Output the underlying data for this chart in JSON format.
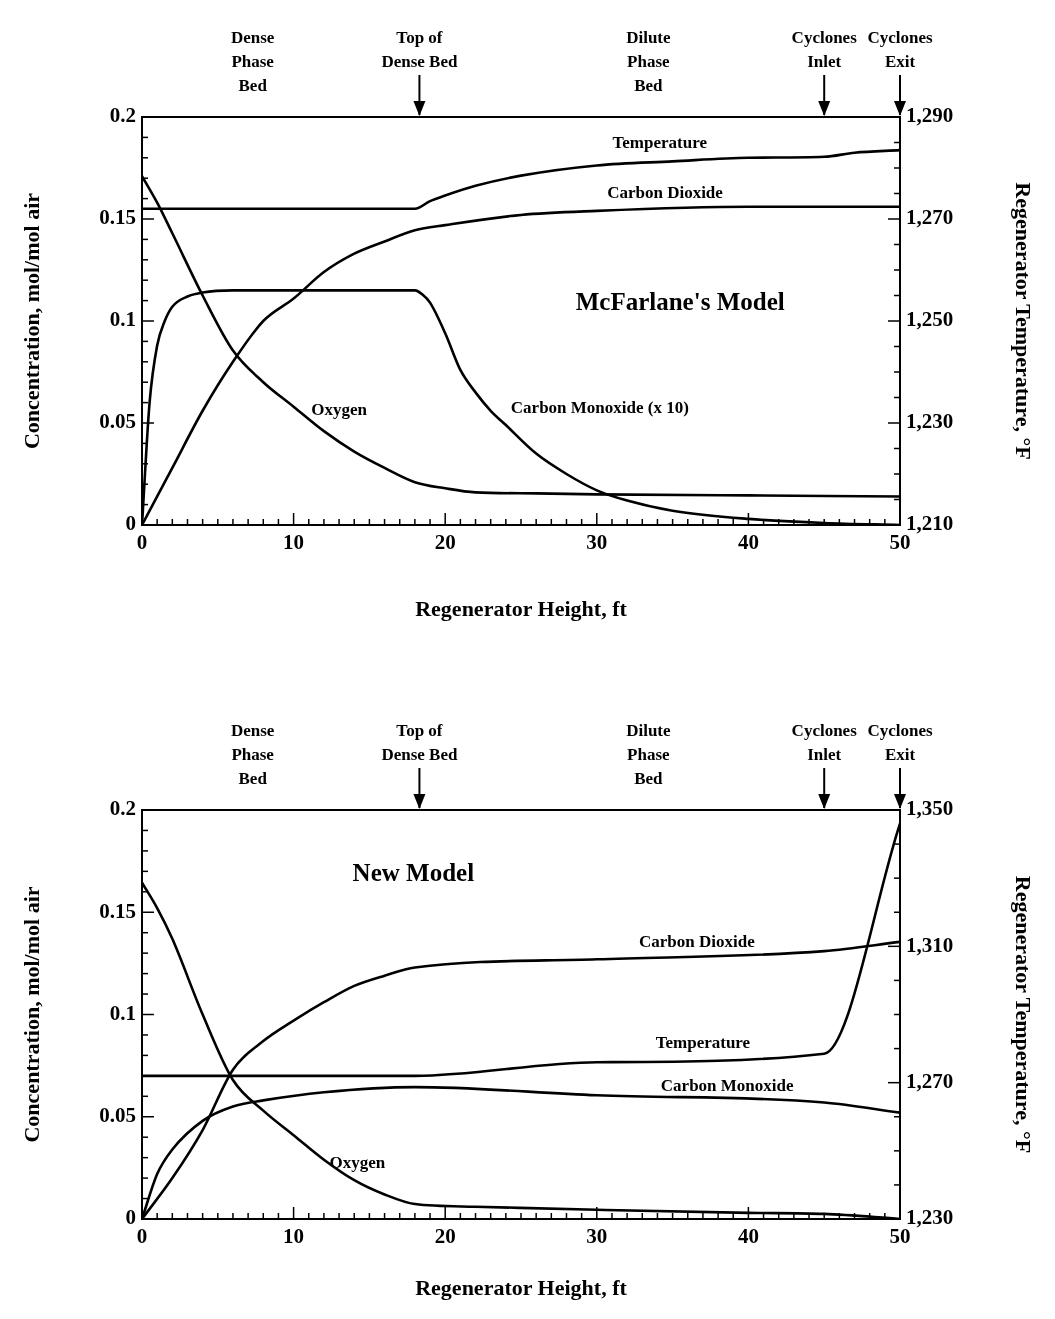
{
  "chart_data": [
    {
      "type": "line",
      "title": "McFarlane's Model",
      "xlabel": "Regenerator Height, ft",
      "ylabel": "Concentration, mol/mol air",
      "y2label": "Regenerator Temperature, °F",
      "xlim": [
        0,
        50
      ],
      "ylim": [
        0,
        0.2
      ],
      "y2lim": [
        1210,
        1290
      ],
      "xticks": [
        0,
        {
          "value": 1,
          "label": null
        },
        {
          "value": 2,
          "label": null
        },
        {
          "value": 3,
          "label": null
        },
        {
          "value": 4,
          "label": null
        },
        {
          "value": 5,
          "label": null
        },
        {
          "value": 6,
          "label": null
        },
        {
          "value": 7,
          "label": null
        },
        {
          "value": 8,
          "label": null
        },
        {
          "value": 9,
          "label": null
        },
        10,
        {
          "value": 11,
          "label": null
        },
        {
          "value": 12,
          "label": null
        },
        {
          "value": 13,
          "label": null
        },
        {
          "value": 14,
          "label": null
        },
        {
          "value": 15,
          "label": null
        },
        {
          "value": 16,
          "label": null
        },
        {
          "value": 17,
          "label": null
        },
        {
          "value": 18,
          "label": null
        },
        {
          "value": 19,
          "label": null
        },
        20,
        {
          "value": 21,
          "label": null
        },
        {
          "value": 22,
          "label": null
        },
        {
          "value": 23,
          "label": null
        },
        {
          "value": 24,
          "label": null
        },
        {
          "value": 25,
          "label": null
        },
        {
          "value": 26,
          "label": null
        },
        {
          "value": 27,
          "label": null
        },
        {
          "value": 28,
          "label": null
        },
        {
          "value": 29,
          "label": null
        },
        30,
        {
          "value": 31,
          "label": null
        },
        {
          "value": 32,
          "label": null
        },
        {
          "value": 33,
          "label": null
        },
        {
          "value": 34,
          "label": null
        },
        {
          "value": 35,
          "label": null
        },
        {
          "value": 36,
          "label": null
        },
        {
          "value": 37,
          "label": null
        },
        {
          "value": 38,
          "label": null
        },
        {
          "value": 39,
          "label": null
        },
        40,
        {
          "value": 41,
          "label": null
        },
        {
          "value": 42,
          "label": null
        },
        {
          "value": 43,
          "label": null
        },
        {
          "value": 44,
          "label": null
        },
        {
          "value": 45,
          "label": null
        },
        {
          "value": 46,
          "label": null
        },
        {
          "value": 47,
          "label": null
        },
        {
          "value": 48,
          "label": null
        },
        {
          "value": 49,
          "label": null
        },
        50
      ],
      "yticks": [
        0,
        {
          "value": 0.01,
          "label": null
        },
        {
          "value": 0.02,
          "label": null
        },
        {
          "value": 0.03,
          "label": null
        },
        {
          "value": 0.04,
          "label": null
        },
        0.05,
        {
          "value": 0.06,
          "label": null
        },
        {
          "value": 0.07,
          "label": null
        },
        {
          "value": 0.08,
          "label": null
        },
        {
          "value": 0.09,
          "label": null
        },
        0.1,
        {
          "value": 0.11,
          "label": null
        },
        {
          "value": 0.12,
          "label": null
        },
        {
          "value": 0.13,
          "label": null
        },
        {
          "value": 0.14,
          "label": null
        },
        0.15,
        {
          "value": 0.16,
          "label": null
        },
        {
          "value": 0.17,
          "label": null
        },
        {
          "value": 0.18,
          "label": null
        },
        {
          "value": 0.19,
          "label": null
        },
        0.2
      ],
      "y2ticks": [
        {
          "value": 1210,
          "label": "1,210"
        },
        {
          "value": 1215,
          "label": null
        },
        {
          "value": 1220,
          "label": null
        },
        {
          "value": 1225,
          "label": null
        },
        {
          "value": 1230,
          "label": "1,230"
        },
        {
          "value": 1235,
          "label": null
        },
        {
          "value": 1240,
          "label": null
        },
        {
          "value": 1245,
          "label": null
        },
        {
          "value": 1250,
          "label": "1,250"
        },
        {
          "value": 1255,
          "label": null
        },
        {
          "value": 1260,
          "label": null
        },
        {
          "value": 1265,
          "label": null
        },
        {
          "value": 1270,
          "label": "1,270"
        },
        {
          "value": 1275,
          "label": null
        },
        {
          "value": 1280,
          "label": null
        },
        {
          "value": 1285,
          "label": null
        },
        {
          "value": 1290,
          "label": "1,290"
        }
      ],
      "annotations": [
        "Dense\nPhase\nBed",
        "Top of\nDense Bed",
        "Dilute\nPhase\nBed",
        "Cyclones\nInlet",
        "Cyclones\nExit"
      ],
      "series": [
        {
          "name": "Oxygen",
          "color": "#000000",
          "x": [
            0,
            1,
            2,
            4,
            6,
            8,
            10,
            12,
            14,
            16,
            18,
            20,
            22,
            26,
            30,
            40,
            50
          ],
          "values": [
            0.171,
            0.158,
            0.143,
            0.1125,
            0.0855,
            0.07,
            0.058,
            0.046,
            0.036,
            0.028,
            0.021,
            0.018,
            0.016,
            0.0155,
            0.015,
            0.0145,
            0.014
          ]
        },
        {
          "name": "Carbon Dioxide",
          "color": "#000000",
          "x": [
            0,
            2,
            4,
            6,
            8,
            10,
            12,
            14,
            16,
            18,
            20,
            25,
            30,
            40,
            50
          ],
          "values": [
            0,
            0.028,
            0.056,
            0.08,
            0.1,
            0.111,
            0.124,
            0.133,
            0.139,
            0.1445,
            0.147,
            0.152,
            0.154,
            0.156,
            0.156
          ]
        },
        {
          "name": "Carbon Monoxide (x 10)",
          "color": "#000000",
          "x": [
            0,
            0.5,
            1,
            1.5,
            2,
            3,
            4,
            6,
            18,
            18.5,
            19,
            20,
            21,
            22,
            23,
            24,
            26,
            28,
            30,
            32,
            35,
            40,
            45,
            50
          ],
          "values": [
            0,
            0.06,
            0.088,
            0.1,
            0.107,
            0.112,
            0.114,
            0.115,
            0.115,
            0.113,
            0.109,
            0.094,
            0.076,
            0.065,
            0.056,
            0.049,
            0.035,
            0.025,
            0.017,
            0.012,
            0.007,
            0.003,
            0.001,
            0
          ]
        },
        {
          "name": "Temperature",
          "color": "#000000",
          "axis": "y2",
          "x": [
            0,
            18,
            19,
            20,
            22,
            25,
            30,
            35,
            40,
            45,
            47,
            50
          ],
          "values": [
            1272,
            1272,
            1273.5,
            1274.6,
            1276.5,
            1278.5,
            1280.5,
            1281.3,
            1282,
            1282.2,
            1283,
            1283.5
          ]
        }
      ]
    },
    {
      "type": "line",
      "title": "New Model",
      "xlabel": "Regenerator Height, ft",
      "ylabel": "Concentration, mol/mol air",
      "y2label": "Regenerator Temperature, °F",
      "xlim": [
        0,
        50
      ],
      "ylim": [
        0,
        0.2
      ],
      "y2lim": [
        1230,
        1350
      ],
      "xticks": [
        0,
        {
          "value": 1,
          "label": null
        },
        {
          "value": 2,
          "label": null
        },
        {
          "value": 3,
          "label": null
        },
        {
          "value": 4,
          "label": null
        },
        {
          "value": 5,
          "label": null
        },
        {
          "value": 6,
          "label": null
        },
        {
          "value": 7,
          "label": null
        },
        {
          "value": 8,
          "label": null
        },
        {
          "value": 9,
          "label": null
        },
        10,
        {
          "value": 11,
          "label": null
        },
        {
          "value": 12,
          "label": null
        },
        {
          "value": 13,
          "label": null
        },
        {
          "value": 14,
          "label": null
        },
        {
          "value": 15,
          "label": null
        },
        {
          "value": 16,
          "label": null
        },
        {
          "value": 17,
          "label": null
        },
        {
          "value": 18,
          "label": null
        },
        {
          "value": 19,
          "label": null
        },
        20,
        {
          "value": 21,
          "label": null
        },
        {
          "value": 22,
          "label": null
        },
        {
          "value": 23,
          "label": null
        },
        {
          "value": 24,
          "label": null
        },
        {
          "value": 25,
          "label": null
        },
        {
          "value": 26,
          "label": null
        },
        {
          "value": 27,
          "label": null
        },
        {
          "value": 28,
          "label": null
        },
        {
          "value": 29,
          "label": null
        },
        30,
        {
          "value": 31,
          "label": null
        },
        {
          "value": 32,
          "label": null
        },
        {
          "value": 33,
          "label": null
        },
        {
          "value": 34,
          "label": null
        },
        {
          "value": 35,
          "label": null
        },
        {
          "value": 36,
          "label": null
        },
        {
          "value": 37,
          "label": null
        },
        {
          "value": 38,
          "label": null
        },
        {
          "value": 39,
          "label": null
        },
        40,
        {
          "value": 41,
          "label": null
        },
        {
          "value": 42,
          "label": null
        },
        {
          "value": 43,
          "label": null
        },
        {
          "value": 44,
          "label": null
        },
        {
          "value": 45,
          "label": null
        },
        {
          "value": 46,
          "label": null
        },
        {
          "value": 47,
          "label": null
        },
        {
          "value": 48,
          "label": null
        },
        {
          "value": 49,
          "label": null
        },
        50
      ],
      "yticks": [
        0,
        {
          "value": 0.01,
          "label": null
        },
        {
          "value": 0.02,
          "label": null
        },
        {
          "value": 0.03,
          "label": null
        },
        {
          "value": 0.04,
          "label": null
        },
        0.05,
        {
          "value": 0.06,
          "label": null
        },
        {
          "value": 0.07,
          "label": null
        },
        {
          "value": 0.08,
          "label": null
        },
        {
          "value": 0.09,
          "label": null
        },
        0.1,
        {
          "value": 0.11,
          "label": null
        },
        {
          "value": 0.12,
          "label": null
        },
        {
          "value": 0.13,
          "label": null
        },
        {
          "value": 0.14,
          "label": null
        },
        0.15,
        {
          "value": 0.16,
          "label": null
        },
        {
          "value": 0.17,
          "label": null
        },
        {
          "value": 0.18,
          "label": null
        },
        {
          "value": 0.19,
          "label": null
        },
        0.2
      ],
      "y2ticks": [
        {
          "value": 1230,
          "label": "1,230"
        },
        {
          "value": 1240,
          "label": null
        },
        {
          "value": 1250,
          "label": null
        },
        {
          "value": 1260,
          "label": null
        },
        {
          "value": 1270,
          "label": "1,270"
        },
        {
          "value": 1280,
          "label": null
        },
        {
          "value": 1290,
          "label": null
        },
        {
          "value": 1300,
          "label": null
        },
        {
          "value": 1310,
          "label": "1,310"
        },
        {
          "value": 1320,
          "label": null
        },
        {
          "value": 1330,
          "label": null
        },
        {
          "value": 1340,
          "label": null
        },
        {
          "value": 1350,
          "label": "1,350"
        }
      ],
      "annotations": [
        "Dense\nPhase\nBed",
        "Top of\nDense Bed",
        "Dilute\nPhase\nBed",
        "Cyclones\nInlet",
        "Cyclones\nExit"
      ],
      "series": [
        {
          "name": "Oxygen",
          "color": "#000000",
          "x": [
            0,
            1,
            2,
            4,
            6,
            8,
            10,
            12,
            14,
            16,
            18,
            22,
            30,
            40,
            45,
            50
          ],
          "values": [
            0.1645,
            0.152,
            0.137,
            0.1,
            0.068,
            0.053,
            0.041,
            0.029,
            0.019,
            0.012,
            0.0073,
            0.006,
            0.0045,
            0.003,
            0.0025,
            0
          ]
        },
        {
          "name": "Carbon Dioxide",
          "color": "#000000",
          "x": [
            0,
            2,
            4,
            6,
            8,
            10,
            12,
            14,
            16,
            18,
            30,
            45,
            50
          ],
          "values": [
            0,
            0.02,
            0.0435,
            0.073,
            0.087,
            0.097,
            0.106,
            0.114,
            0.119,
            0.123,
            0.127,
            0.131,
            0.1355
          ]
        },
        {
          "name": "Carbon Monoxide",
          "color": "#000000",
          "x": [
            0,
            1,
            2,
            4,
            6,
            8,
            12,
            18,
            30,
            45,
            50
          ],
          "values": [
            0,
            0.022,
            0.034,
            0.048,
            0.055,
            0.058,
            0.062,
            0.0645,
            0.0605,
            0.057,
            0.052
          ]
        },
        {
          "name": "Temperature",
          "color": "#000000",
          "axis": "y2",
          "x": [
            0,
            18,
            30,
            45,
            50
          ],
          "values": [
            1272,
            1272,
            1276,
            1278.5,
            1346
          ]
        }
      ]
    }
  ]
}
